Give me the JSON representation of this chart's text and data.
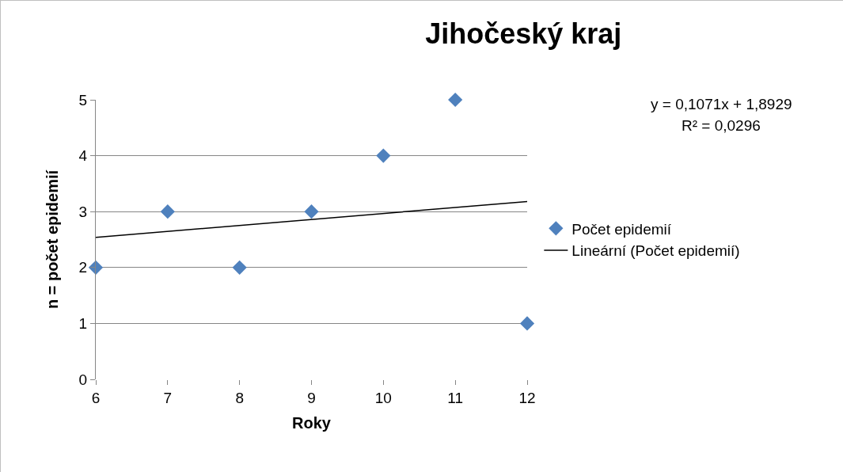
{
  "chart_data": {
    "type": "scatter",
    "title": "Jihočeský kraj",
    "xlabel": "Roky",
    "ylabel": "n = počet epidemií",
    "x": [
      6,
      7,
      8,
      9,
      10,
      11,
      12
    ],
    "series": [
      {
        "name": "Počet epidemií",
        "color": "#4f81bd",
        "values": [
          2,
          3,
          2,
          3,
          4,
          5,
          1
        ],
        "marker": "diamond"
      },
      {
        "name": "Lineární (Počet epidemií)",
        "type": "line",
        "color": "#000000",
        "x": [
          6,
          12
        ],
        "values": [
          2.54,
          3.18
        ],
        "marker": "none",
        "line_style": "solid"
      }
    ],
    "annotations": [
      "y = 0,1071x + 1,8929",
      "R² = 0,0296"
    ],
    "xlim": [
      6,
      12
    ],
    "xticks": [
      6,
      7,
      8,
      9,
      10,
      11,
      12
    ],
    "ylim": [
      0,
      5
    ],
    "yticks": [
      0,
      1,
      2,
      3,
      4,
      5
    ],
    "grid": "y",
    "legend": "right"
  }
}
